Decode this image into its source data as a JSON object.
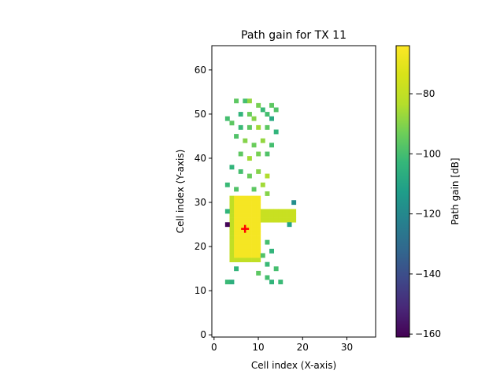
{
  "chart_data": {
    "type": "heatmap",
    "title": "Path gain for TX 11",
    "xlabel": "Cell index (X-axis)",
    "ylabel": "Cell index (Y-axis)",
    "xlim": [
      -0.5,
      36.5
    ],
    "ylim": [
      -0.5,
      65.5
    ],
    "xticks": [
      0,
      10,
      20,
      30
    ],
    "yticks": [
      0,
      10,
      20,
      30,
      40,
      50,
      60
    ],
    "grid": false,
    "colorbar": {
      "label": "Path gain [dB]",
      "colormap": "viridis",
      "range": [
        -161,
        -64
      ],
      "ticks": [
        -160,
        -140,
        -120,
        -100,
        -80
      ]
    },
    "transmitter": {
      "x": 7,
      "y": 24,
      "marker": "plus",
      "color": "#ff0000"
    },
    "high_gain_region": {
      "x_range": [
        4,
        10
      ],
      "y_range": [
        17,
        31
      ],
      "value_db": -66
    },
    "corridor_region": {
      "x_range": [
        11,
        18
      ],
      "y_range": [
        26,
        28
      ],
      "value_db": -78
    },
    "scattered_cells": [
      {
        "x": 5,
        "y": 53,
        "v": -96
      },
      {
        "x": 7,
        "y": 53,
        "v": -100
      },
      {
        "x": 8,
        "y": 53,
        "v": -88
      },
      {
        "x": 10,
        "y": 52,
        "v": -92
      },
      {
        "x": 11,
        "y": 51,
        "v": -102
      },
      {
        "x": 13,
        "y": 52,
        "v": -96
      },
      {
        "x": 14,
        "y": 51,
        "v": -98
      },
      {
        "x": 6,
        "y": 50,
        "v": -104
      },
      {
        "x": 8,
        "y": 50,
        "v": -94
      },
      {
        "x": 9,
        "y": 49,
        "v": -90
      },
      {
        "x": 12,
        "y": 50,
        "v": -100
      },
      {
        "x": 13,
        "y": 49,
        "v": -108
      },
      {
        "x": 3,
        "y": 49,
        "v": -100
      },
      {
        "x": 4,
        "y": 48,
        "v": -96
      },
      {
        "x": 6,
        "y": 47,
        "v": -102
      },
      {
        "x": 8,
        "y": 47,
        "v": -96
      },
      {
        "x": 10,
        "y": 47,
        "v": -86
      },
      {
        "x": 12,
        "y": 47,
        "v": -96
      },
      {
        "x": 14,
        "y": 46,
        "v": -104
      },
      {
        "x": 5,
        "y": 45,
        "v": -98
      },
      {
        "x": 7,
        "y": 44,
        "v": -90
      },
      {
        "x": 9,
        "y": 43,
        "v": -94
      },
      {
        "x": 11,
        "y": 44,
        "v": -88
      },
      {
        "x": 13,
        "y": 43,
        "v": -100
      },
      {
        "x": 6,
        "y": 41,
        "v": -96
      },
      {
        "x": 8,
        "y": 40,
        "v": -86
      },
      {
        "x": 10,
        "y": 41,
        "v": -92
      },
      {
        "x": 12,
        "y": 41,
        "v": -98
      },
      {
        "x": 4,
        "y": 38,
        "v": -104
      },
      {
        "x": 6,
        "y": 37,
        "v": -100
      },
      {
        "x": 8,
        "y": 36,
        "v": -94
      },
      {
        "x": 10,
        "y": 37,
        "v": -90
      },
      {
        "x": 12,
        "y": 36,
        "v": -84
      },
      {
        "x": 3,
        "y": 34,
        "v": -102
      },
      {
        "x": 5,
        "y": 33,
        "v": -98
      },
      {
        "x": 9,
        "y": 33,
        "v": -96
      },
      {
        "x": 11,
        "y": 34,
        "v": -86
      },
      {
        "x": 12,
        "y": 32,
        "v": -90
      },
      {
        "x": 3,
        "y": 25,
        "v": -160
      },
      {
        "x": 3,
        "y": 28,
        "v": -104
      },
      {
        "x": 18,
        "y": 30,
        "v": -118
      },
      {
        "x": 17,
        "y": 25,
        "v": -110
      },
      {
        "x": 12,
        "y": 21,
        "v": -100
      },
      {
        "x": 13,
        "y": 19,
        "v": -104
      },
      {
        "x": 11,
        "y": 18,
        "v": -98
      },
      {
        "x": 12,
        "y": 16,
        "v": -102
      },
      {
        "x": 14,
        "y": 15,
        "v": -100
      },
      {
        "x": 5,
        "y": 15,
        "v": -104
      },
      {
        "x": 10,
        "y": 14,
        "v": -96
      },
      {
        "x": 12,
        "y": 13,
        "v": -100
      },
      {
        "x": 13,
        "y": 12,
        "v": -104
      },
      {
        "x": 15,
        "y": 12,
        "v": -102
      },
      {
        "x": 4,
        "y": 12,
        "v": -106
      },
      {
        "x": 3,
        "y": 12,
        "v": -102
      }
    ]
  }
}
